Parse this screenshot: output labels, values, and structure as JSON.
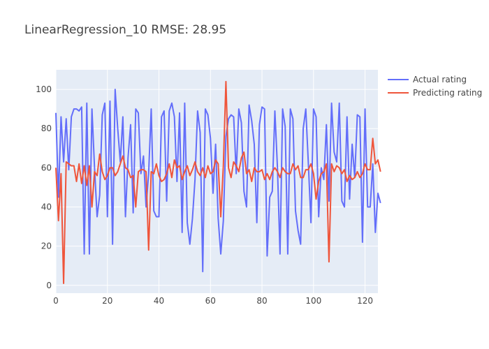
{
  "chart_data": {
    "type": "line",
    "title": "LinearRegression_10 RMSE: 28.95",
    "xlabel": "",
    "ylabel": "",
    "xlim": [
      0,
      125
    ],
    "ylim": [
      -4,
      110
    ],
    "x_ticks": [
      0,
      20,
      40,
      60,
      80,
      100,
      120
    ],
    "y_ticks": [
      0,
      20,
      40,
      60,
      80,
      100
    ],
    "grid": true,
    "legend_position": "top-right",
    "series": [
      {
        "name": "Actual rating",
        "color": "#636efa",
        "values": [
          88,
          45,
          86,
          63,
          85,
          59,
          86,
          90,
          90,
          89,
          91,
          16,
          93,
          16,
          90,
          60,
          35,
          46,
          87,
          93,
          35,
          94,
          21,
          100,
          80,
          63,
          86,
          35,
          65,
          82,
          37,
          90,
          88,
          57,
          66,
          40,
          57,
          90,
          38,
          35,
          35,
          86,
          89,
          43,
          89,
          93,
          86,
          53,
          88,
          27,
          93,
          32,
          21,
          34,
          54,
          89,
          78,
          7,
          90,
          87,
          75,
          47,
          72,
          34,
          16,
          33,
          76,
          85,
          87,
          86,
          57,
          90,
          83,
          48,
          40,
          92,
          84,
          72,
          32,
          82,
          91,
          90,
          15,
          45,
          48,
          89,
          60,
          16,
          90,
          81,
          16,
          90,
          85,
          38,
          28,
          21,
          80,
          90,
          62,
          32,
          90,
          86,
          35,
          60,
          54,
          82,
          43,
          93,
          68,
          63,
          93,
          43,
          40,
          86,
          44,
          72,
          55,
          87,
          86,
          22,
          90,
          40,
          40,
          62,
          27,
          47,
          42
        ]
      },
      {
        "name": "Predicting rating",
        "color": "#ef553b",
        "values": [
          60,
          33,
          57,
          1,
          63,
          62,
          61,
          61,
          53,
          62,
          52,
          61,
          51,
          61,
          40,
          58,
          56,
          67,
          58,
          54,
          56,
          60,
          60,
          56,
          58,
          62,
          66,
          60,
          59,
          55,
          56,
          40,
          58,
          59,
          59,
          58,
          18,
          58,
          57,
          62,
          56,
          53,
          54,
          57,
          62,
          55,
          64,
          60,
          61,
          54,
          58,
          61,
          56,
          59,
          63,
          58,
          56,
          60,
          55,
          61,
          57,
          58,
          64,
          62,
          35,
          61,
          104,
          60,
          55,
          63,
          61,
          58,
          65,
          68,
          57,
          59,
          53,
          60,
          58,
          58,
          59,
          54,
          57,
          54,
          58,
          60,
          58,
          55,
          60,
          58,
          57,
          57,
          62,
          59,
          61,
          55,
          55,
          59,
          59,
          62,
          57,
          44,
          53,
          57,
          58,
          62,
          12,
          62,
          58,
          61,
          60,
          57,
          59,
          53,
          56,
          54,
          55,
          58,
          55,
          57,
          62,
          59,
          59,
          75,
          62,
          64,
          58
        ]
      }
    ]
  }
}
